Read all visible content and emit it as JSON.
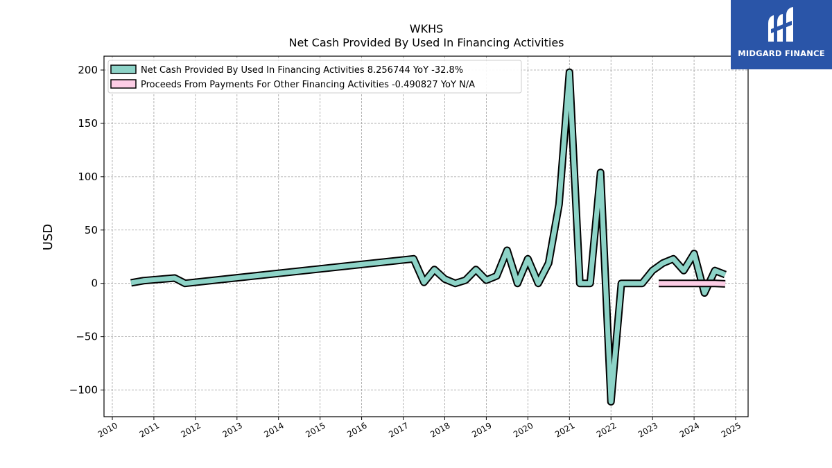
{
  "brand": {
    "name": "MIDGARD FINANCE",
    "color": "#2a55a8"
  },
  "chart_data": {
    "type": "line",
    "title": "WKHS",
    "subtitle": "Net Cash Provided By Used In Financing Activities",
    "xlabel": "",
    "ylabel": "USD",
    "xlim": [
      2009.8,
      2025.3
    ],
    "ylim": [
      -125,
      213
    ],
    "x_ticks": [
      "2010",
      "2011",
      "2012",
      "2013",
      "2014",
      "2015",
      "2016",
      "2017",
      "2018",
      "2019",
      "2020",
      "2021",
      "2022",
      "2023",
      "2024",
      "2025"
    ],
    "y_ticks": [
      "200",
      "150",
      "100",
      "50",
      "0",
      "−50",
      "−100"
    ],
    "grid": true,
    "legend_position": "top-left",
    "series": [
      {
        "name": "Net Cash Provided By Used In Financing Activities",
        "legend_label": "Net Cash Provided By Used In Financing Activities  8.256744 YoY -32.8%",
        "color": "#8dd3c7",
        "points": [
          [
            2010.45,
            0.5
          ],
          [
            2010.75,
            2.5
          ],
          [
            2011.5,
            5
          ],
          [
            2011.75,
            0
          ],
          [
            2017.25,
            23
          ],
          [
            2017.5,
            1
          ],
          [
            2017.75,
            13
          ],
          [
            2018.0,
            4
          ],
          [
            2018.25,
            0
          ],
          [
            2018.5,
            3
          ],
          [
            2018.75,
            13
          ],
          [
            2019.0,
            3
          ],
          [
            2019.25,
            7
          ],
          [
            2019.5,
            31
          ],
          [
            2019.75,
            0
          ],
          [
            2020.0,
            23
          ],
          [
            2020.25,
            0
          ],
          [
            2020.5,
            19
          ],
          [
            2020.75,
            74
          ],
          [
            2021.0,
            198
          ],
          [
            2021.25,
            0
          ],
          [
            2021.5,
            0
          ],
          [
            2021.75,
            104
          ],
          [
            2022.0,
            -111
          ],
          [
            2022.25,
            0
          ],
          [
            2022.5,
            0
          ],
          [
            2022.75,
            0
          ],
          [
            2023.0,
            12
          ],
          [
            2023.25,
            19
          ],
          [
            2023.5,
            23
          ],
          [
            2023.75,
            12
          ],
          [
            2024.0,
            28
          ],
          [
            2024.25,
            -9
          ],
          [
            2024.5,
            12
          ],
          [
            2024.75,
            8.26
          ]
        ]
      },
      {
        "name": "Proceeds From Payments For Other Financing Activities",
        "legend_label": "Proceeds From Payments For Other Financing Activities  -0.490827 YoY N/A",
        "color": "#fccde5",
        "points": [
          [
            2023.15,
            0
          ],
          [
            2023.5,
            0
          ],
          [
            2023.75,
            0
          ],
          [
            2024.0,
            0
          ],
          [
            2024.5,
            0
          ],
          [
            2024.75,
            -0.49
          ]
        ]
      }
    ]
  }
}
